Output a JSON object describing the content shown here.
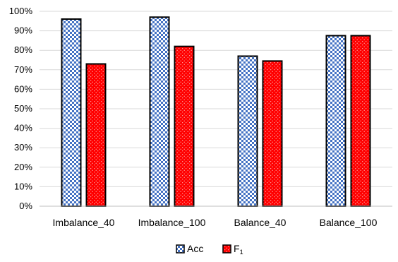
{
  "chart_data": {
    "type": "bar",
    "title": "",
    "xlabel": "",
    "ylabel": "",
    "categories": [
      "Imbalance_40",
      "Imbalance_100",
      "Balance_40",
      "Balance_100"
    ],
    "ylim": [
      0,
      1
    ],
    "y_ticks": [
      "0%",
      "10%",
      "20%",
      "30%",
      "40%",
      "50%",
      "60%",
      "70%",
      "80%",
      "90%",
      "100%"
    ],
    "grid": true,
    "legend_position": "bottom",
    "series": [
      {
        "name": "Acc",
        "values": [
          0.96,
          0.97,
          0.77,
          0.875
        ],
        "fill": "#4472c4",
        "pattern": "checker-blue"
      },
      {
        "name": "F1",
        "name_base": "F",
        "name_sub": "1",
        "values": [
          0.73,
          0.82,
          0.745,
          0.875
        ],
        "fill": "#ff0000",
        "pattern": "dotted-red"
      }
    ]
  }
}
